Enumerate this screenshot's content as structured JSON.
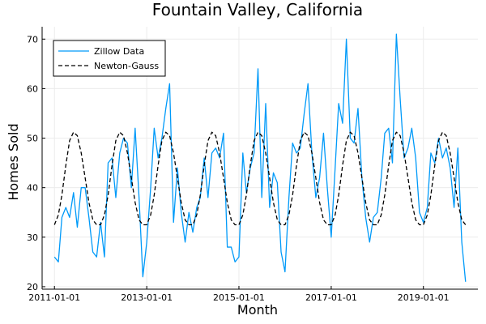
{
  "chart_data": {
    "type": "line",
    "title": "Fountain Valley, California",
    "xlabel": "Month",
    "ylabel": "Homes Sold",
    "x_tick_labels": [
      "2011-01-01",
      "2013-01-01",
      "2015-01-01",
      "2017-01-01",
      "2019-01-01"
    ],
    "y_ticks": [
      20,
      30,
      40,
      50,
      60,
      70
    ],
    "ylim": [
      19.5,
      72.5
    ],
    "x_start": "2011-01-01",
    "x_end": "2019-12-01",
    "grid": true,
    "legend_position": "top-left",
    "colors": {
      "zillow": "#009af9",
      "model": "#000000",
      "grid": "#ececec",
      "axis": "#000000"
    },
    "series": [
      {
        "name": "Zillow Data",
        "style": "solid",
        "x": [
          "2011-01-01",
          "2011-02-01",
          "2011-03-01",
          "2011-04-01",
          "2011-05-01",
          "2011-06-01",
          "2011-07-01",
          "2011-08-01",
          "2011-09-01",
          "2011-10-01",
          "2011-11-01",
          "2011-12-01",
          "2012-01-01",
          "2012-02-01",
          "2012-03-01",
          "2012-04-01",
          "2012-05-01",
          "2012-06-01",
          "2012-07-01",
          "2012-08-01",
          "2012-09-01",
          "2012-10-01",
          "2012-11-01",
          "2012-12-01",
          "2013-01-01",
          "2013-02-01",
          "2013-03-01",
          "2013-04-01",
          "2013-05-01",
          "2013-06-01",
          "2013-07-01",
          "2013-08-01",
          "2013-09-01",
          "2013-10-01",
          "2013-11-01",
          "2013-12-01",
          "2014-01-01",
          "2014-02-01",
          "2014-03-01",
          "2014-04-01",
          "2014-05-01",
          "2014-06-01",
          "2014-07-01",
          "2014-08-01",
          "2014-09-01",
          "2014-10-01",
          "2014-11-01",
          "2014-12-01",
          "2015-01-01",
          "2015-02-01",
          "2015-03-01",
          "2015-04-01",
          "2015-05-01",
          "2015-06-01",
          "2015-07-01",
          "2015-08-01",
          "2015-09-01",
          "2015-10-01",
          "2015-11-01",
          "2015-12-01",
          "2016-01-01",
          "2016-02-01",
          "2016-03-01",
          "2016-04-01",
          "2016-05-01",
          "2016-06-01",
          "2016-07-01",
          "2016-08-01",
          "2016-09-01",
          "2016-10-01",
          "2016-11-01",
          "2016-12-01",
          "2017-01-01",
          "2017-02-01",
          "2017-03-01",
          "2017-04-01",
          "2017-05-01",
          "2017-06-01",
          "2017-07-01",
          "2017-08-01",
          "2017-09-01",
          "2017-10-01",
          "2017-11-01",
          "2017-12-01",
          "2018-01-01",
          "2018-02-01",
          "2018-03-01",
          "2018-04-01",
          "2018-05-01",
          "2018-06-01",
          "2018-07-01",
          "2018-08-01",
          "2018-09-01",
          "2018-10-01",
          "2018-11-01",
          "2018-12-01",
          "2019-01-01",
          "2019-02-01",
          "2019-03-01",
          "2019-04-01",
          "2019-05-01",
          "2019-06-01",
          "2019-07-01",
          "2019-08-01",
          "2019-09-01",
          "2019-10-01",
          "2019-11-01",
          "2019-12-01"
        ],
        "y": [
          26,
          25,
          34,
          36,
          34,
          39,
          32,
          40,
          40,
          34,
          27,
          26,
          33,
          26,
          45,
          46,
          38,
          47,
          50,
          49,
          40,
          52,
          38,
          22,
          29,
          40,
          52,
          46,
          50,
          56,
          61,
          33,
          44,
          35,
          29,
          35,
          31,
          36,
          38,
          46,
          38,
          47,
          48,
          46,
          51,
          28,
          28,
          25,
          26,
          47,
          39,
          44,
          47,
          64,
          38,
          57,
          36,
          43,
          41,
          27,
          23,
          38,
          49,
          47,
          48,
          55,
          61,
          47,
          38,
          42,
          51,
          40,
          30,
          44,
          57,
          53,
          70,
          50,
          49,
          56,
          42,
          34,
          29,
          34,
          35,
          42,
          51,
          52,
          45,
          71,
          58,
          46,
          48,
          52,
          46,
          35,
          33,
          36,
          47,
          45,
          50,
          46,
          48,
          44,
          36,
          48,
          29,
          21
        ]
      },
      {
        "name": "Newton-Gauss",
        "style": "dashed",
        "x": [
          "2011-01-01",
          "2011-02-01",
          "2011-03-01",
          "2011-04-01",
          "2011-05-01",
          "2011-06-01",
          "2011-07-01",
          "2011-08-01",
          "2011-09-01",
          "2011-10-01",
          "2011-11-01",
          "2011-12-01",
          "2012-01-01",
          "2012-02-01",
          "2012-03-01",
          "2012-04-01",
          "2012-05-01",
          "2012-06-01",
          "2012-07-01",
          "2012-08-01",
          "2012-09-01",
          "2012-10-01",
          "2012-11-01",
          "2012-12-01",
          "2013-01-01",
          "2013-02-01",
          "2013-03-01",
          "2013-04-01",
          "2013-05-01",
          "2013-06-01",
          "2013-07-01",
          "2013-08-01",
          "2013-09-01",
          "2013-10-01",
          "2013-11-01",
          "2013-12-01",
          "2014-01-01",
          "2014-02-01",
          "2014-03-01",
          "2014-04-01",
          "2014-05-01",
          "2014-06-01",
          "2014-07-01",
          "2014-08-01",
          "2014-09-01",
          "2014-10-01",
          "2014-11-01",
          "2014-12-01",
          "2015-01-01",
          "2015-02-01",
          "2015-03-01",
          "2015-04-01",
          "2015-05-01",
          "2015-06-01",
          "2015-07-01",
          "2015-08-01",
          "2015-09-01",
          "2015-10-01",
          "2015-11-01",
          "2015-12-01",
          "2016-01-01",
          "2016-02-01",
          "2016-03-01",
          "2016-04-01",
          "2016-05-01",
          "2016-06-01",
          "2016-07-01",
          "2016-08-01",
          "2016-09-01",
          "2016-10-01",
          "2016-11-01",
          "2016-12-01",
          "2017-01-01",
          "2017-02-01",
          "2017-03-01",
          "2017-04-01",
          "2017-05-01",
          "2017-06-01",
          "2017-07-01",
          "2017-08-01",
          "2017-09-01",
          "2017-10-01",
          "2017-11-01",
          "2017-12-01",
          "2018-01-01",
          "2018-02-01",
          "2018-03-01",
          "2018-04-01",
          "2018-05-01",
          "2018-06-01",
          "2018-07-01",
          "2018-08-01",
          "2018-09-01",
          "2018-10-01",
          "2018-11-01",
          "2018-12-01",
          "2019-01-01",
          "2019-02-01",
          "2019-03-01",
          "2019-04-01",
          "2019-05-01",
          "2019-06-01",
          "2019-07-01",
          "2019-08-01",
          "2019-09-01",
          "2019-10-01",
          "2019-11-01",
          "2019-12-01"
        ],
        "y": [
          32.5,
          34.5,
          38.5,
          44.5,
          49.5,
          51.2,
          50.5,
          47,
          42,
          37,
          33.5,
          32.5,
          32.5,
          34.5,
          38.5,
          44.5,
          49.5,
          51.2,
          50.5,
          47,
          42,
          37,
          33.5,
          32.5,
          32.5,
          34.5,
          38.5,
          44.5,
          49.5,
          51.2,
          50.5,
          47,
          42,
          37,
          33.5,
          32.5,
          32.5,
          34.5,
          38.5,
          44.5,
          49.5,
          51.2,
          50.5,
          47,
          42,
          37,
          33.5,
          32.5,
          32.5,
          34.5,
          38.5,
          44.5,
          49.5,
          51.2,
          50.5,
          47,
          42,
          37,
          33.5,
          32.5,
          32.5,
          34.5,
          38.5,
          44.5,
          49.5,
          51.2,
          50.5,
          47,
          42,
          37,
          33.5,
          32.5,
          32.5,
          34.5,
          38.5,
          44.5,
          49.5,
          51.2,
          50.5,
          47,
          42,
          37,
          33.5,
          32.5,
          32.5,
          34.5,
          38.5,
          44.5,
          49.5,
          51.2,
          50.5,
          47,
          42,
          37,
          33.5,
          32.5,
          32.5,
          34.5,
          38.5,
          44.5,
          49.5,
          51.2,
          50.5,
          47,
          42,
          37,
          33.5,
          32.5
        ]
      }
    ]
  }
}
